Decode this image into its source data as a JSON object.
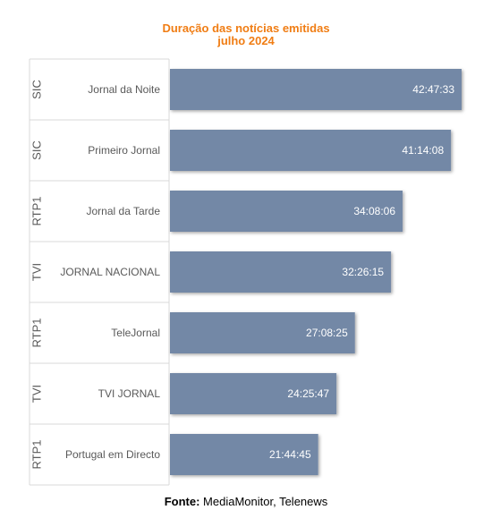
{
  "title_line1": "Duração das notícias emitidas",
  "title_line2": "julho 2024",
  "source": {
    "label": "Fonte:",
    "text": "MediaMonitor, Telenews"
  },
  "colors": {
    "title": "#f07d14",
    "bar": "#7388a6",
    "bar_label": "#ffffff",
    "category_text": "#595959",
    "grid": "#d9d9d9"
  },
  "chart_data": {
    "type": "bar",
    "orientation": "horizontal",
    "categories": [
      {
        "channel": "SIC",
        "program": "Jornal da Noite"
      },
      {
        "channel": "SIC",
        "program": "Primeiro Jornal"
      },
      {
        "channel": "RTP1",
        "program": "Jornal da Tarde"
      },
      {
        "channel": "TVI",
        "program": "JORNAL NACIONAL"
      },
      {
        "channel": "RTP1",
        "program": "TeleJornal"
      },
      {
        "channel": "TVI",
        "program": "TVI JORNAL"
      },
      {
        "channel": "RTP1",
        "program": "Portugal em Directo"
      }
    ],
    "values": [
      "42:47:33",
      "41:14:08",
      "34:08:06",
      "32:26:15",
      "27:08:25",
      "24:25:47",
      "21:44:45"
    ],
    "value_unit": "hh:mm:ss",
    "title": "Duração das notícias emitidas julho 2024",
    "grid": false,
    "legend": "none"
  }
}
